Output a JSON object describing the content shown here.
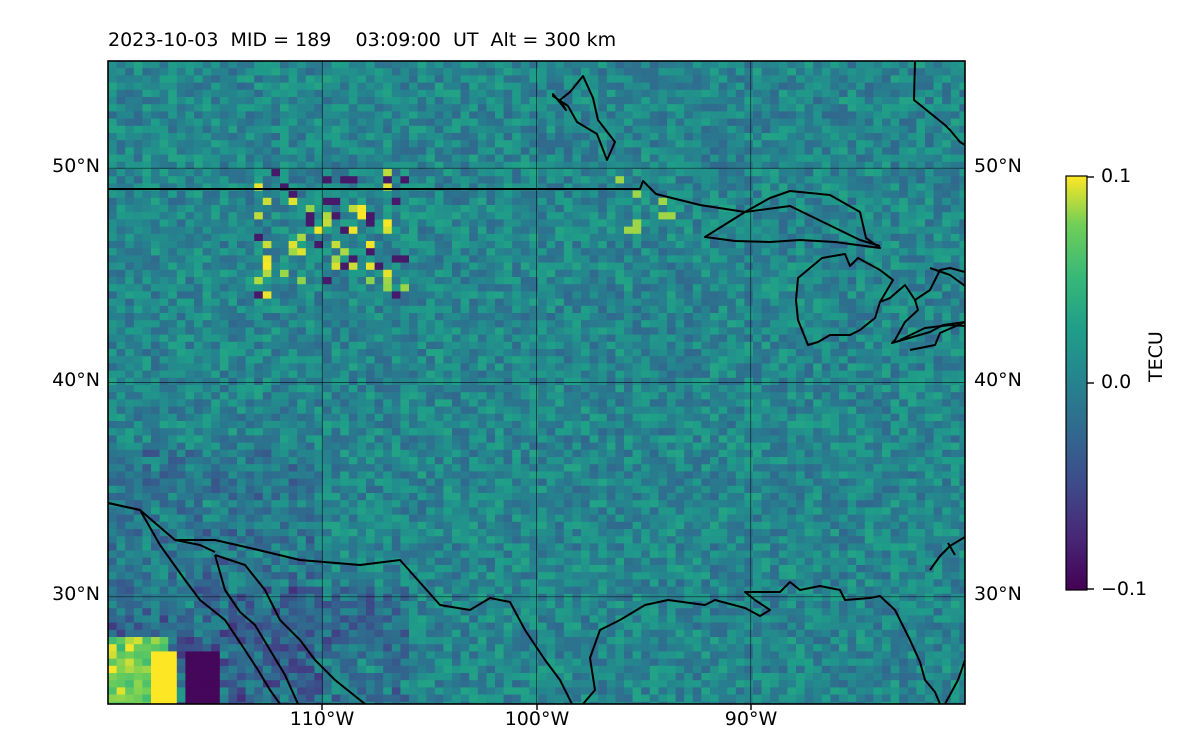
{
  "title": "2023-10-03  MID = 189    03:09:00  UT  Alt = 300 km",
  "map": {
    "projection": "PlateCarree",
    "lon_range": [
      -120,
      -80
    ],
    "lat_range": [
      25,
      55
    ],
    "gridlines": true,
    "coastlines": true,
    "borders": true,
    "lat_ticks": [
      "50°N",
      "40°N",
      "30°N"
    ],
    "lon_ticks": [
      "110°W",
      "100°W",
      "90°W"
    ]
  },
  "field": {
    "quantity": "TEC perturbation",
    "colormap": "viridis",
    "pattern": "noisy near-zero field; strong positive (yellow) patch at far southwest corner; negative (purple) patches over northern Mexico and southwest US; scattered yellow pixels near 47-50°N, 107-112°W and 94-96°W"
  },
  "colorbar": {
    "label": "TECU",
    "ticks": [
      "0.1",
      "0.0",
      "−0.1"
    ],
    "vmin": -0.1,
    "vmax": 0.1
  }
}
